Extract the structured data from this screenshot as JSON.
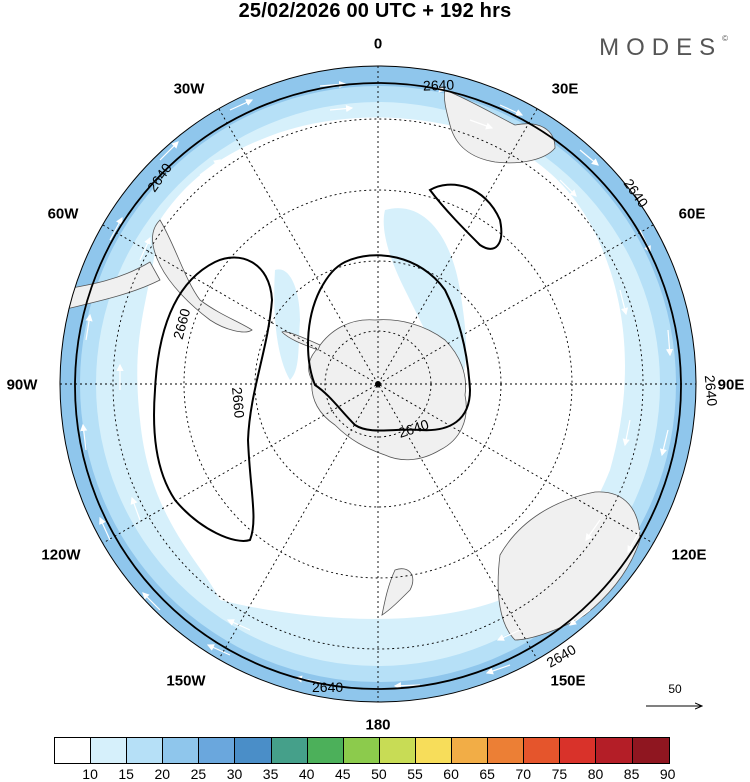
{
  "title": "25/02/2026  00 UTC  + 192 hrs",
  "brand": "MODES",
  "brand_mark": "©",
  "longitude_labels": [
    "0",
    "30E",
    "60E",
    "90E",
    "120E",
    "150E",
    "180",
    "150W",
    "120W",
    "90W",
    "60W",
    "30W"
  ],
  "contour_labels": [
    "2640",
    "2640",
    "2640",
    "2640",
    "2640",
    "2640",
    "2660",
    "2660",
    "2640"
  ],
  "reference_vector": "50",
  "colorbar": {
    "labels": [
      "10",
      "15",
      "20",
      "25",
      "30",
      "35",
      "40",
      "45",
      "50",
      "55",
      "60",
      "65",
      "70",
      "75",
      "80",
      "85",
      "90"
    ],
    "colors": [
      "#ffffff",
      "#d6f0fb",
      "#b6e0f7",
      "#8fc6ec",
      "#6aa7dd",
      "#4a8ec8",
      "#45a08a",
      "#4cb05a",
      "#8ccb4c",
      "#c8dc55",
      "#f7dd5a",
      "#f2ad46",
      "#ec7f35",
      "#e5552c",
      "#d9322a",
      "#b41e27",
      "#8f1620"
    ]
  },
  "map_colors": {
    "band_weak": "#d6f0fb",
    "band_mid": "#b6e0f7",
    "band_strong": "#8fc6ec",
    "band_max": "#6aa7dd",
    "land": "#f0f0f0",
    "coast": "#555555"
  }
}
